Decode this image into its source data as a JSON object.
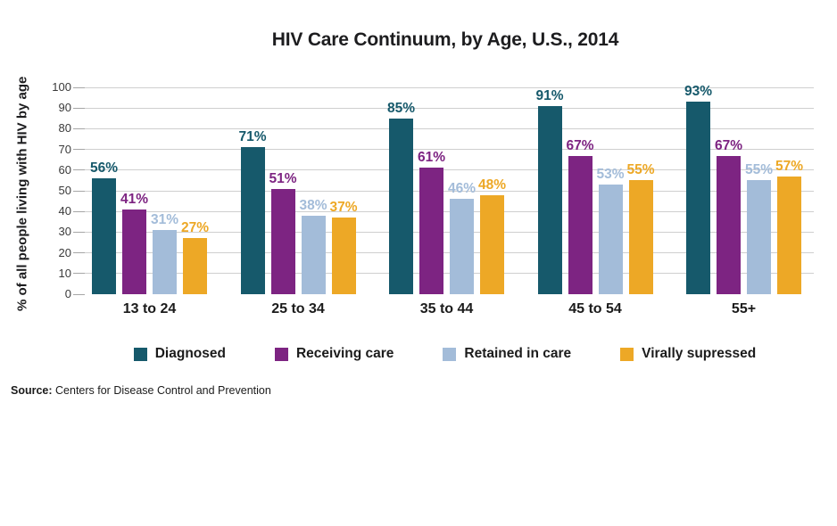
{
  "title": "HIV Care Continuum, by Age, U.S., 2014",
  "source": {
    "label": "Source:",
    "text": " Centers for Disease Control and Prevention"
  },
  "chart_data": {
    "type": "bar",
    "title": "HIV Care Continuum, by Age, U.S., 2014",
    "xlabel": "",
    "ylabel": "% of all people living with HIV by age",
    "ylim": [
      0,
      100
    ],
    "yticks": [
      0,
      10,
      20,
      30,
      40,
      50,
      60,
      70,
      80,
      90,
      100
    ],
    "grid": true,
    "legend_position": "bottom",
    "value_suffix": "%",
    "categories": [
      "13 to 24",
      "25 to 34",
      "35 to 44",
      "45 to 54",
      "55+"
    ],
    "series": [
      {
        "name": "Diagnosed",
        "color": "#16596B",
        "values": [
          56,
          71,
          85,
          91,
          93
        ]
      },
      {
        "name": "Receiving care",
        "color": "#7D2482",
        "values": [
          41,
          51,
          61,
          67,
          67
        ]
      },
      {
        "name": "Retained in care",
        "color": "#A3BCD9",
        "values": [
          31,
          38,
          46,
          53,
          55
        ]
      },
      {
        "name": "Virally supressed",
        "color": "#EDA826",
        "values": [
          27,
          37,
          48,
          55,
          57
        ]
      }
    ]
  }
}
